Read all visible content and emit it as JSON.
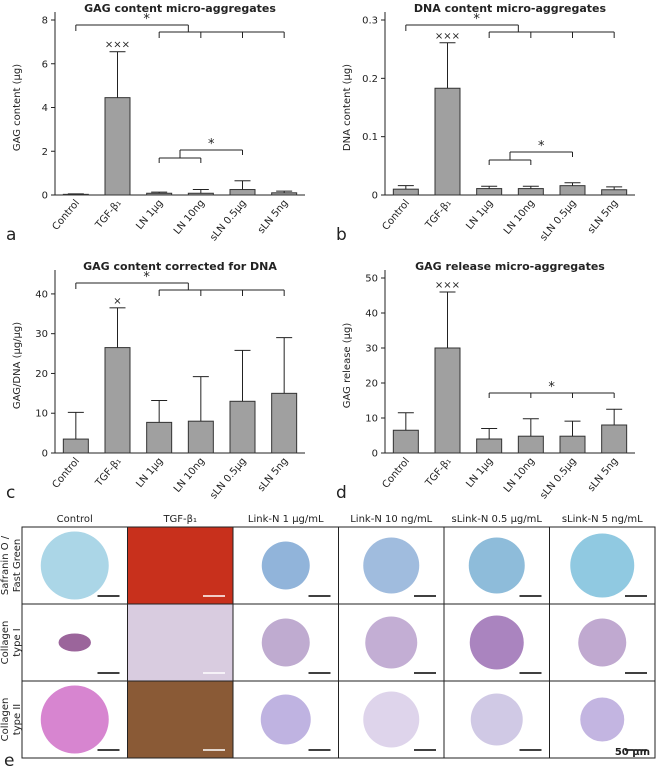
{
  "chart_data": [
    {
      "type": "bar",
      "panel": "a",
      "title": "GAG content micro-aggregates",
      "y_label": "GAG content (µg)",
      "categories": [
        "Control",
        "TGF-β₁",
        "LN 1µg",
        "LN 10ng",
        "sLN 0.5µg",
        "sLN 5ng"
      ],
      "values": [
        0.03,
        4.45,
        0.08,
        0.08,
        0.25,
        0.1
      ],
      "errors": [
        0.02,
        2.1,
        0.05,
        0.17,
        0.4,
        0.08
      ],
      "color": "#a0a0a0",
      "ylim": [
        0,
        8
      ],
      "yticks": [
        0,
        2,
        4,
        6,
        8
      ],
      "annotations": [
        "×××",
        "*",
        "*"
      ]
    },
    {
      "type": "bar",
      "panel": "b",
      "title": "DNA content micro-aggregates",
      "y_label": "DNA content (µg)",
      "categories": [
        "Control",
        "TGF-β₁",
        "LN 1µg",
        "LN 10ng",
        "sLN 0.5µg",
        "sLN 5ng"
      ],
      "values": [
        0.01,
        0.183,
        0.011,
        0.011,
        0.016,
        0.009
      ],
      "errors": [
        0.006,
        0.078,
        0.004,
        0.004,
        0.005,
        0.005
      ],
      "color": "#a0a0a0",
      "ylim": [
        0,
        0.3
      ],
      "yticks": [
        0,
        0.1,
        0.2,
        0.3
      ],
      "annotations": [
        "×××",
        "*",
        "*"
      ]
    },
    {
      "type": "bar",
      "panel": "c",
      "title": "GAG content corrected for DNA",
      "y_label": "GAG/DNA (µg/µg)",
      "categories": [
        "Control",
        "TGF-β₁",
        "LN 1µg",
        "LN 10ng",
        "sLN 0.5µg",
        "sLN 5ng"
      ],
      "values": [
        3.5,
        26.5,
        7.7,
        8,
        13,
        15
      ],
      "errors": [
        6.7,
        10,
        5.5,
        11.2,
        12.8,
        14
      ],
      "color": "#a0a0a0",
      "ylim": [
        0,
        44
      ],
      "yticks": [
        0,
        10,
        20,
        30,
        40
      ],
      "annotations": [
        "×",
        "*"
      ]
    },
    {
      "type": "bar",
      "panel": "d",
      "title": "GAG release micro-aggregates",
      "y_label": "GAG release (µg)",
      "categories": [
        "Control",
        "TGF-β₁",
        "LN 1µg",
        "LN 10ng",
        "sLN 0.5µg",
        "sLN 5ng"
      ],
      "values": [
        6.5,
        30,
        4,
        4.8,
        4.8,
        8
      ],
      "errors": [
        5,
        16,
        3,
        5,
        4.3,
        4.5
      ],
      "color": "#a0a0a0",
      "ylim": [
        0,
        50
      ],
      "yticks": [
        0,
        10,
        20,
        30,
        40,
        50
      ],
      "annotations": [
        "×××",
        "*"
      ]
    }
  ],
  "panel_e": {
    "label": "e",
    "columns": [
      "Control",
      "TGF-β₁",
      "Link-N 1 µg/mL",
      "Link-N 10 ng/mL",
      "sLink-N 0.5 µg/mL",
      "sLink-N 5 ng/mL"
    ],
    "rows": [
      [
        "Safranin O /",
        "Fast Green"
      ],
      [
        "Collagen",
        "type I"
      ],
      [
        "Collagen",
        "type II"
      ]
    ],
    "scale": "50 µm"
  }
}
